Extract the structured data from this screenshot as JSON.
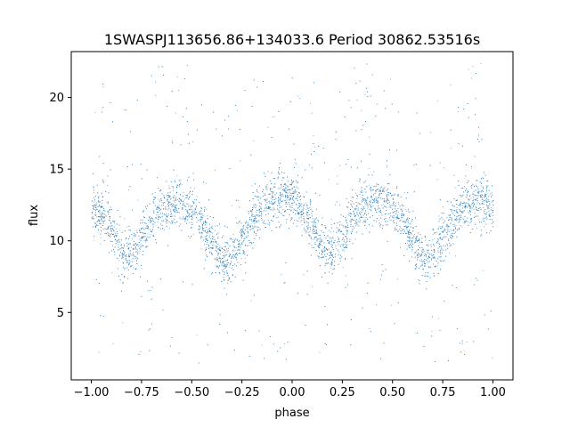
{
  "chart_data": {
    "type": "scatter",
    "title": "1SWASPJ113656.86+134033.6 Period 30862.53516s",
    "xlabel": "phase",
    "ylabel": "flux",
    "xlim": [
      -1.1,
      1.1
    ],
    "ylim": [
      0.3,
      23.2
    ],
    "xticks": [
      -1.0,
      -0.75,
      -0.5,
      -0.25,
      0.0,
      0.25,
      0.5,
      0.75,
      1.0
    ],
    "xtick_labels": [
      "−1.00",
      "−0.75",
      "−0.50",
      "−0.25",
      "0.00",
      "0.25",
      "0.50",
      "0.75",
      "1.00"
    ],
    "yticks": [
      5,
      10,
      15,
      20
    ],
    "ytick_labels": [
      "5",
      "10",
      "15",
      "20"
    ],
    "grid": false,
    "legend": "none",
    "marker_color": "#1f77b4",
    "series": [
      {
        "phase": [
          -1.0,
          -0.95,
          -0.9,
          -0.85,
          -0.82,
          -0.78,
          -0.7,
          -0.65,
          -0.6,
          -0.55,
          -0.5,
          -0.45,
          -0.4,
          -0.35,
          -0.32,
          -0.28,
          -0.2,
          -0.15,
          -0.1,
          -0.05,
          0.0,
          0.05,
          0.1,
          0.15,
          0.18,
          0.22,
          0.3,
          0.35,
          0.4,
          0.45,
          0.5,
          0.55,
          0.6,
          0.65,
          0.68,
          0.72,
          0.8,
          0.85,
          0.9,
          0.95,
          1.0
        ],
        "flux": [
          12.4,
          11.9,
          10.9,
          9.4,
          8.9,
          9.5,
          11.6,
          12.4,
          12.7,
          12.6,
          12.1,
          11.2,
          10.0,
          8.9,
          8.5,
          9.2,
          11.4,
          12.4,
          12.8,
          13.0,
          12.8,
          12.2,
          11.1,
          9.6,
          9.1,
          9.7,
          11.7,
          12.5,
          12.8,
          12.7,
          12.2,
          11.3,
          10.0,
          8.9,
          8.6,
          9.3,
          11.4,
          12.4,
          12.8,
          12.8,
          12.4
        ]
      }
    ]
  }
}
